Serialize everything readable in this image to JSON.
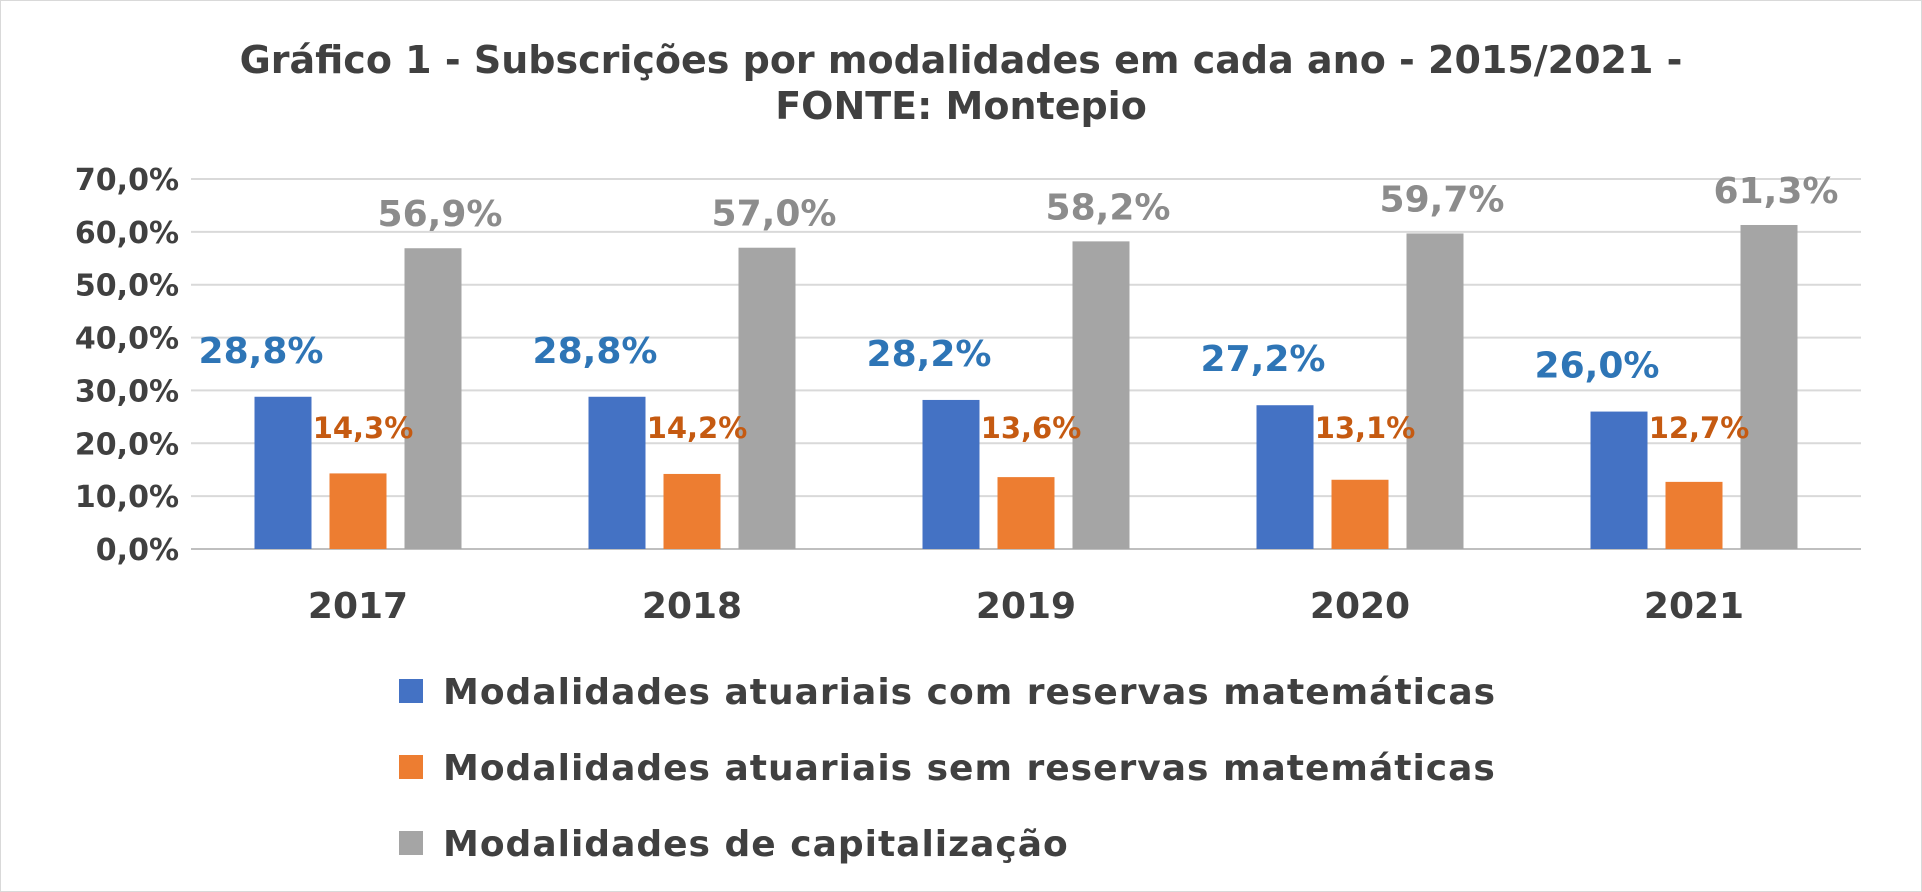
{
  "chart_data": {
    "type": "bar",
    "title_lines": [
      "Gráfico 1 - Subscrições por modalidades em cada ano - 2015/2021 -",
      "FONTE: Montepio"
    ],
    "categories": [
      "2017",
      "2018",
      "2019",
      "2020",
      "2021"
    ],
    "ylim": [
      0,
      70
    ],
    "yticks": [
      "0,0%",
      "10,0%",
      "20,0%",
      "30,0%",
      "40,0%",
      "50,0%",
      "60,0%",
      "70,0%"
    ],
    "grid": true,
    "legend_position": "bottom",
    "series": [
      {
        "name": "Modalidades atuariais com reservas matemáticas",
        "color": "#4472c4",
        "label_color": "#2e75b6",
        "values": [
          28.8,
          28.8,
          28.2,
          27.2,
          26.0
        ],
        "labels": [
          "28,8%",
          "28,8%",
          "28,2%",
          "27,2%",
          "26,0%"
        ]
      },
      {
        "name": "Modalidades atuariais sem reservas matemáticas",
        "color": "#ed7d31",
        "label_color": "#c55a11",
        "values": [
          14.3,
          14.2,
          13.6,
          13.1,
          12.7
        ],
        "labels": [
          "14,3%",
          "14,2%",
          "13,6%",
          "13,1%",
          "12,7%"
        ]
      },
      {
        "name": "Modalidades de capitalização",
        "color": "#a5a5a5",
        "label_color": "#8c8c8c",
        "values": [
          56.9,
          57.0,
          58.2,
          59.7,
          61.3
        ],
        "labels": [
          "56,9%",
          "57,0%",
          "58,2%",
          "59,7%",
          "61,3%"
        ]
      }
    ]
  }
}
